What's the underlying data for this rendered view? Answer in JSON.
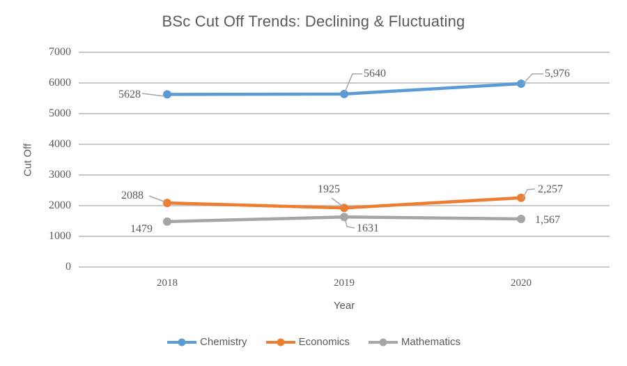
{
  "title": "BSc Cut Off Trends: Declining & Fluctuating",
  "axes": {
    "y_title": "Cut Off",
    "x_title": "Year",
    "y_ticks": [
      "7000",
      "6000",
      "5000",
      "4000",
      "3000",
      "2000",
      "1000",
      "0"
    ]
  },
  "chart_data": {
    "type": "line",
    "title": "BSc Cut Off Trends: Declining & Fluctuating",
    "xlabel": "Year",
    "ylabel": "Cut Off",
    "ylim": [
      0,
      7000
    ],
    "y_tick_step": 1000,
    "grid": true,
    "legend_position": "bottom",
    "categories": [
      "2018",
      "2019",
      "2020"
    ],
    "series": [
      {
        "name": "Chemistry",
        "color": "#5B9BD5",
        "values": [
          5628,
          5640,
          5976
        ],
        "labels": [
          "5628",
          "5640",
          "5,976"
        ]
      },
      {
        "name": "Economics",
        "color": "#ED7D31",
        "values": [
          2088,
          1925,
          2257
        ],
        "labels": [
          "2088",
          "1925",
          "2,257"
        ]
      },
      {
        "name": "Mathematics",
        "color": "#A5A5A5",
        "values": [
          1479,
          1631,
          1567
        ],
        "labels": [
          "1479",
          "1631",
          "1,567"
        ]
      }
    ]
  },
  "colors": {
    "background": "#FFFFFF",
    "text": "#595959",
    "gridline": "#C9C9C9",
    "leader_line": "#A6A6A6"
  }
}
